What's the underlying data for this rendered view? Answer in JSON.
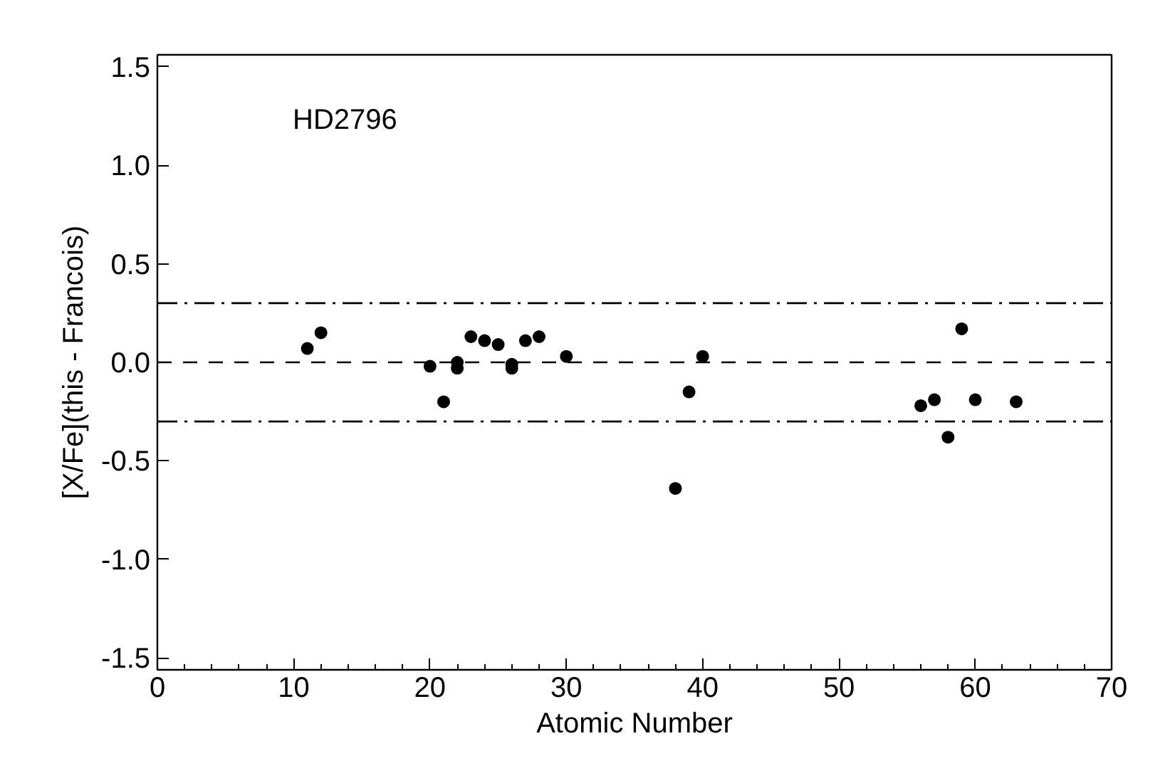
{
  "chart_data": {
    "type": "scatter",
    "xlabel": "Atomic Number",
    "ylabel": "[X/Fe](this - Francois)",
    "annotations": [
      "HD2796"
    ],
    "x": [
      11,
      12,
      20,
      21,
      22,
      22,
      23,
      24,
      25,
      26,
      26,
      27,
      28,
      30,
      38,
      39,
      40,
      56,
      57,
      58,
      59,
      60,
      63
    ],
    "series": [
      {
        "color": "#000000",
        "values": [
          0.07,
          0.15,
          -0.02,
          -0.2,
          0.0,
          -0.03,
          0.13,
          0.11,
          0.09,
          -0.01,
          -0.03,
          0.11,
          0.13,
          0.03,
          -0.64,
          -0.15,
          0.03,
          -0.22,
          -0.19,
          -0.38,
          0.17,
          -0.19,
          -0.2
        ]
      }
    ],
    "xlim": [
      0,
      70
    ],
    "ylim": [
      -1.56,
      1.56
    ],
    "xticks": [
      0,
      10,
      20,
      30,
      40,
      50,
      60,
      70
    ],
    "yticks": [
      {
        "value": -1.5,
        "label": "-1.5"
      },
      {
        "value": -1.0,
        "label": "-1.0"
      },
      {
        "value": -0.5,
        "label": "-0.5"
      },
      {
        "value": 0.0,
        "label": "0.0"
      },
      {
        "value": 0.5,
        "label": "0.5"
      },
      {
        "value": 1.0,
        "label": "1.0"
      },
      {
        "value": 1.5,
        "label": "1.5"
      }
    ],
    "ref_lines": [
      {
        "axis": "y",
        "value": 0.3,
        "line_style": "dashdot",
        "color": "#000000"
      },
      {
        "axis": "y",
        "value": 0.0,
        "line_style": "dashed",
        "color": "#000000"
      },
      {
        "axis": "y",
        "value": -0.3,
        "line_style": "dashdot",
        "color": "#000000"
      }
    ],
    "marker": "circle"
  }
}
